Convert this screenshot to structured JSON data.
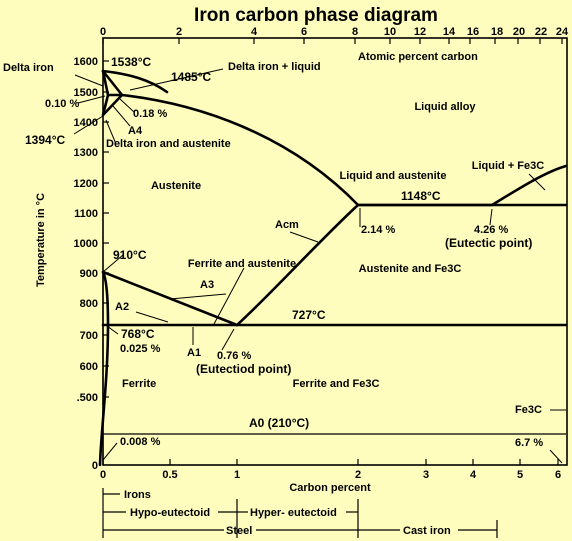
{
  "title": "Iron carbon phase diagram",
  "axes": {
    "top_label": "Atomic percent carbon",
    "bottom_label": "Carbon percent",
    "left_label": "Temperature in °C",
    "top_ticks": [
      "0",
      "2",
      "4",
      "6",
      "8",
      "10",
      "12",
      "14",
      "16",
      "18",
      "20",
      "22",
      "24"
    ],
    "bottom_ticks": [
      "0",
      "0.5",
      "1",
      "2",
      "3",
      "4",
      "5",
      "6"
    ],
    "left_ticks": [
      "1600",
      "1500",
      "1400",
      "1300",
      "1200",
      "1100",
      "1000",
      "900",
      "800",
      "700",
      "600",
      ".500",
      "0"
    ]
  },
  "regions": {
    "liquid_alloy": "Liquid alloy",
    "austenite": "Austenite",
    "liquid_and_austenite": "Liquid and austenite",
    "liquid_fe3c": "Liquid + Fe3C",
    "ferrite_austenite": "Ferrite and austenite",
    "austenite_fe3c": "Austenite and Fe3C",
    "ferrite": "Ferrite",
    "ferrite_fe3c": "Ferrite and Fe3C",
    "delta_iron": "Delta iron",
    "delta_liquid": "Delta iron +  liquid",
    "delta_austenite": "Delta iron and austenite",
    "fe3c": "Fe3C"
  },
  "points": {
    "t1538": "1538°C",
    "t1485": "1485°C",
    "t1394": "1394°C",
    "t1148": "1148°C",
    "t910": "910°C",
    "t768": "768°C",
    "t727": "727°C",
    "a0": "A0 (210°C)",
    "c010": "0.10 %",
    "c018": "0.18 %",
    "c214": "2.14 %",
    "c426": "4.26 %",
    "eutectic": "(Eutectic point)",
    "c076": "0.76 %",
    "eutectoid": "(Eutectiod point)",
    "c0025": "0.025 %",
    "c0008": "0.008 %",
    "c67": "6.7 %",
    "acm": "Acm",
    "a1": "A1",
    "a2": "A2",
    "a3": "A3",
    "a4": "A4"
  },
  "classification": {
    "irons": "Irons",
    "hypo": "Hypo-eutectoid",
    "hyper": "Hyper- eutectoid",
    "steel": "Steel",
    "cast_iron": "Cast iron"
  }
}
